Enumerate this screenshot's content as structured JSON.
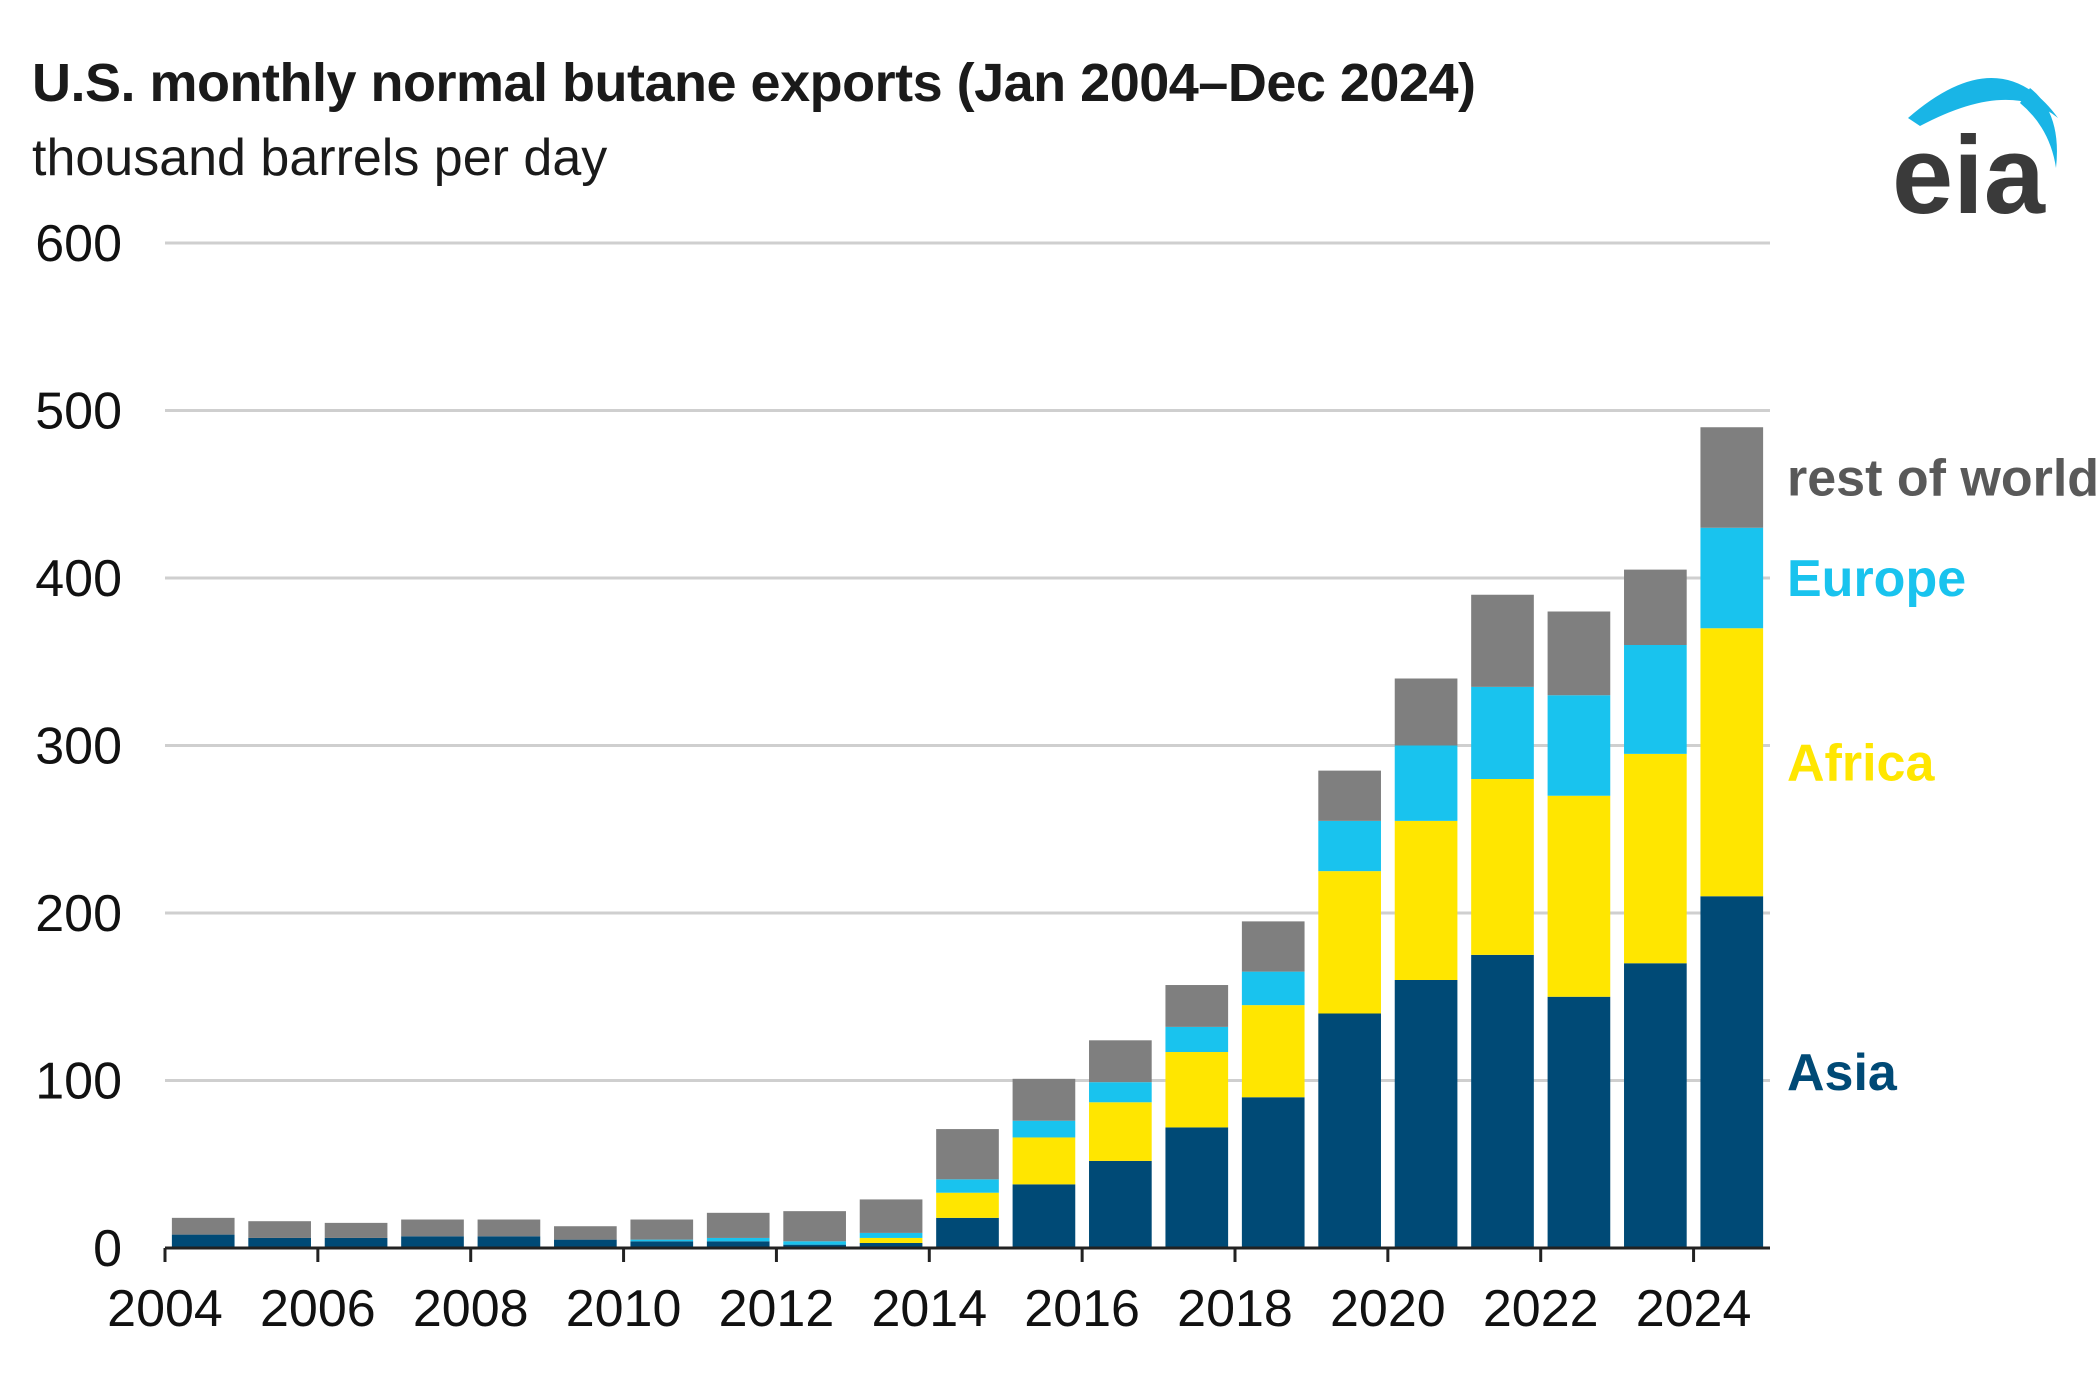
{
  "header": {
    "title": "U.S. monthly normal butane exports (Jan 2004–Dec 2024)",
    "subtitle": "thousand barrels per day"
  },
  "logo": {
    "text": "eia",
    "icon": "eia-logo-icon"
  },
  "chart_data": {
    "type": "bar",
    "stacked": true,
    "ylim": [
      0,
      600
    ],
    "yticks": [
      0,
      100,
      200,
      300,
      400,
      500,
      600
    ],
    "xlim": [
      2004,
      2025
    ],
    "xticks": [
      "2004",
      "2006",
      "2008",
      "2010",
      "2012",
      "2014",
      "2016",
      "2018",
      "2020",
      "2022",
      "2024"
    ],
    "grid": true,
    "legend": "direct-labels-right",
    "x": [
      "2004",
      "2005",
      "2006",
      "2007",
      "2008",
      "2009",
      "2010",
      "2011",
      "2012",
      "2013",
      "2014",
      "2015",
      "2016",
      "2017",
      "2018",
      "2019",
      "2020",
      "2021",
      "2022",
      "2023",
      "2024"
    ],
    "series": [
      {
        "name": "Asia",
        "color": "#004a76",
        "values": [
          8,
          6,
          6,
          7,
          7,
          5,
          4,
          4,
          2,
          3,
          18,
          38,
          52,
          72,
          90,
          140,
          160,
          175,
          150,
          170,
          210
        ]
      },
      {
        "name": "Africa",
        "color": "#ffe600",
        "values": [
          0,
          0,
          0,
          0,
          0,
          0,
          0,
          0,
          0,
          3,
          15,
          28,
          35,
          45,
          55,
          85,
          95,
          105,
          120,
          125,
          160
        ]
      },
      {
        "name": "Europe",
        "color": "#19c3ee",
        "values": [
          0,
          0,
          0,
          0,
          0,
          0,
          1,
          2,
          2,
          3,
          8,
          10,
          12,
          15,
          20,
          30,
          45,
          55,
          60,
          65,
          60
        ]
      },
      {
        "name": "rest of world",
        "color": "#7f7f7f",
        "values": [
          10,
          10,
          9,
          10,
          10,
          8,
          12,
          15,
          18,
          20,
          30,
          25,
          25,
          25,
          30,
          30,
          40,
          55,
          50,
          45,
          60
        ]
      }
    ]
  }
}
